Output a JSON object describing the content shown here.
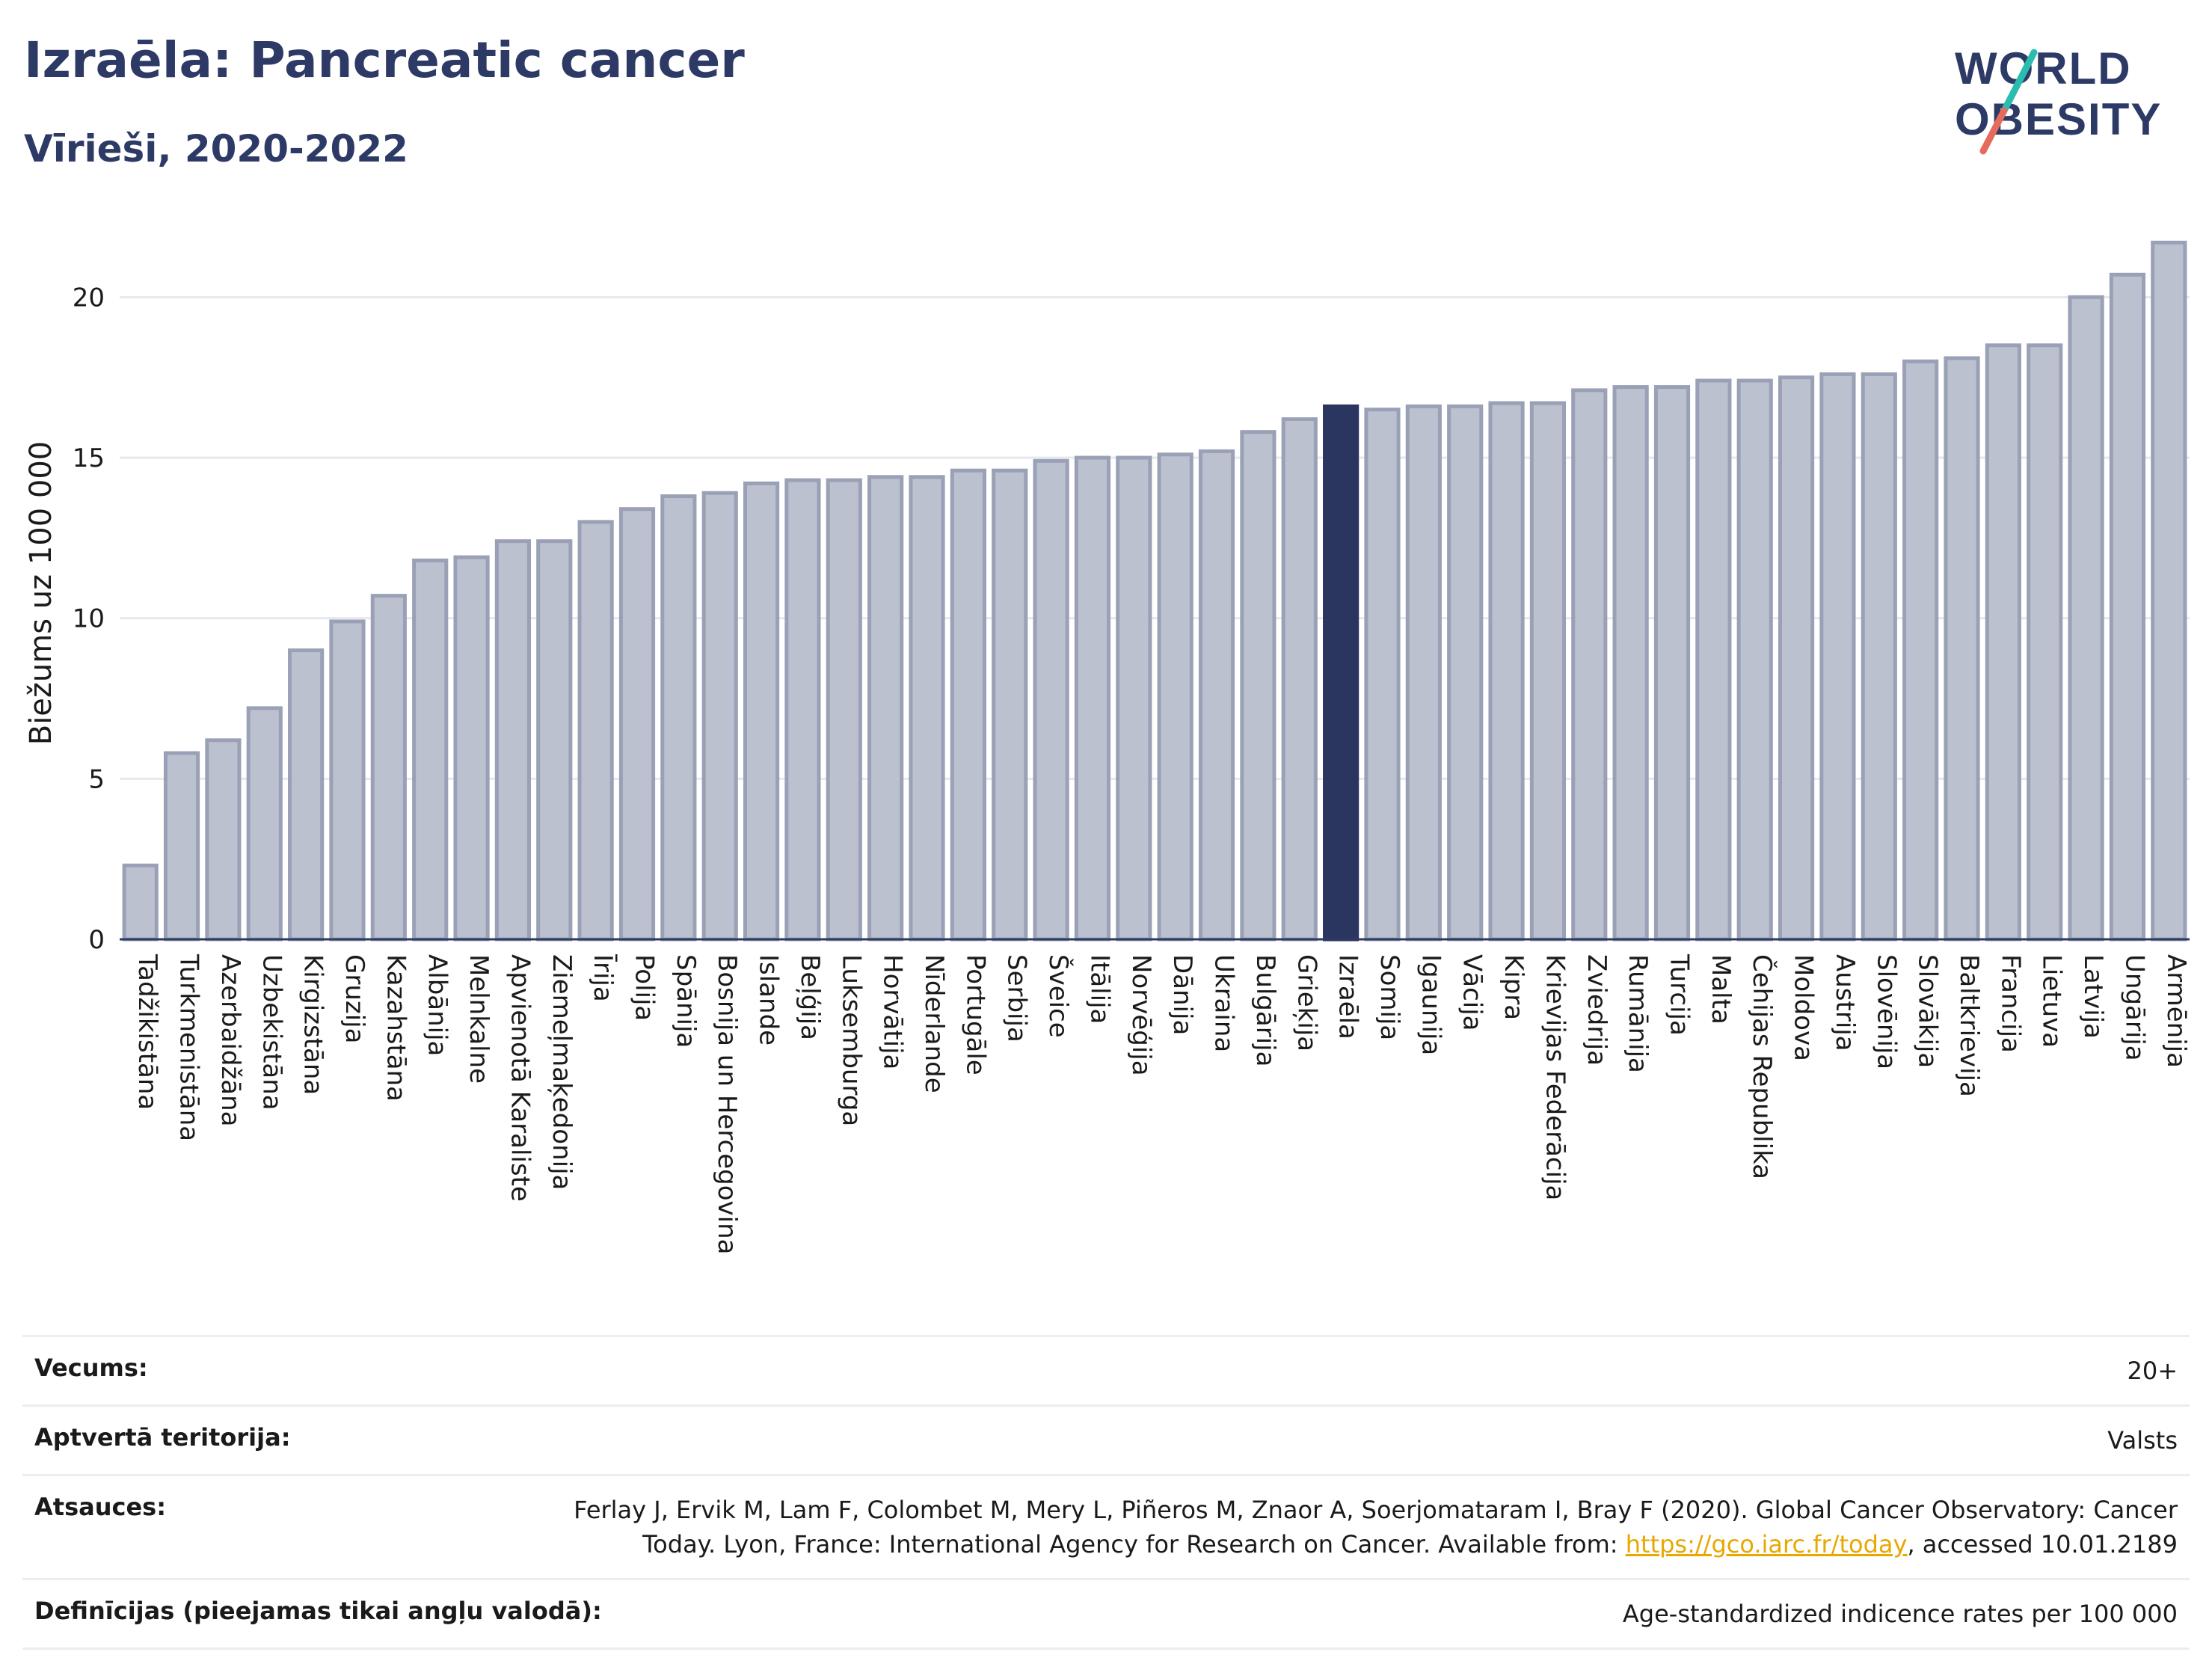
{
  "header": {
    "title": "Izraēla: Pancreatic cancer",
    "subtitle": "Vīrieši, 2020-2022",
    "logo_line1": "WORLD",
    "logo_line2": "OBESITY"
  },
  "colors": {
    "bar": "#bcc1d0",
    "bar_stroke": "#9aa1b6",
    "highlight": "#2a3560",
    "grid": "#e6e8ee",
    "axis": "#2d3a66",
    "logo_teal": "#2bbcb0",
    "logo_coral": "#e56b5d"
  },
  "chart_data": {
    "type": "bar",
    "ylabel": "Biežums uz 100 000",
    "ylim": [
      0,
      22.5
    ],
    "yticks": [
      0,
      5,
      10,
      15,
      20
    ],
    "grid": true,
    "highlight": "Izraēla",
    "categories": [
      "Tadžikistāna",
      "Turkmenistāna",
      "Azerbaidžāna",
      "Uzbekistāna",
      "Kirgizstāna",
      "Gruzija",
      "Kazahstāna",
      "Albānija",
      "Melnkalne",
      "Apvienotā Karaliste",
      "Ziemeļmaķedonija",
      "Īrija",
      "Polija",
      "Spānija",
      "Bosnija un Hercegovina",
      "Islande",
      "Beļģija",
      "Luksemburga",
      "Horvātija",
      "Nīderlande",
      "Portugāle",
      "Serbija",
      "Šveice",
      "Itālija",
      "Norvēģija",
      "Dānija",
      "Ukraina",
      "Bulgārija",
      "Grieķija",
      "Izraēla",
      "Somija",
      "Igaunija",
      "Vācija",
      "Kipra",
      "Krievijas Federācija",
      "Zviedrija",
      "Rumānija",
      "Turcija",
      "Malta",
      "Čehijas Republika",
      "Moldova",
      "Austrija",
      "Slovēnija",
      "Slovākija",
      "Baltkrievija",
      "Francija",
      "Lietuva",
      "Latvija",
      "Ungārija",
      "Armēnija"
    ],
    "values": [
      2.3,
      5.8,
      6.2,
      7.2,
      9.0,
      9.9,
      10.7,
      11.8,
      11.9,
      12.4,
      12.4,
      13.0,
      13.4,
      13.8,
      13.9,
      14.2,
      14.3,
      14.3,
      14.4,
      14.4,
      14.6,
      14.6,
      14.9,
      15.0,
      15.0,
      15.1,
      15.2,
      15.8,
      16.2,
      16.6,
      16.5,
      16.6,
      16.6,
      16.7,
      16.7,
      17.1,
      17.2,
      17.2,
      17.4,
      17.4,
      17.5,
      17.6,
      17.6,
      18.0,
      18.1,
      18.5,
      18.5,
      20.0,
      20.7,
      21.7
    ]
  },
  "meta": [
    {
      "label": "Vecums:",
      "value": "20+"
    },
    {
      "label": "Aptvertā teritorija:",
      "value": "Valsts"
    },
    {
      "label": "Atsauces:",
      "value_before": "Ferlay J, Ervik M, Lam F, Colombet M, Mery L, Piñeros M, Znaor A, Soerjomataram I, Bray F (2020). Global Cancer Observatory: Cancer Today. Lyon, France: International Agency for Research on Cancer. Available from: ",
      "link": "https://gco.iarc.fr/today",
      "value_after": ", accessed 10.01.2189"
    },
    {
      "label": "Definīcijas (pieejamas tikai angļu valodā):",
      "value": "Age-standardized indicence rates per 100 000"
    }
  ]
}
